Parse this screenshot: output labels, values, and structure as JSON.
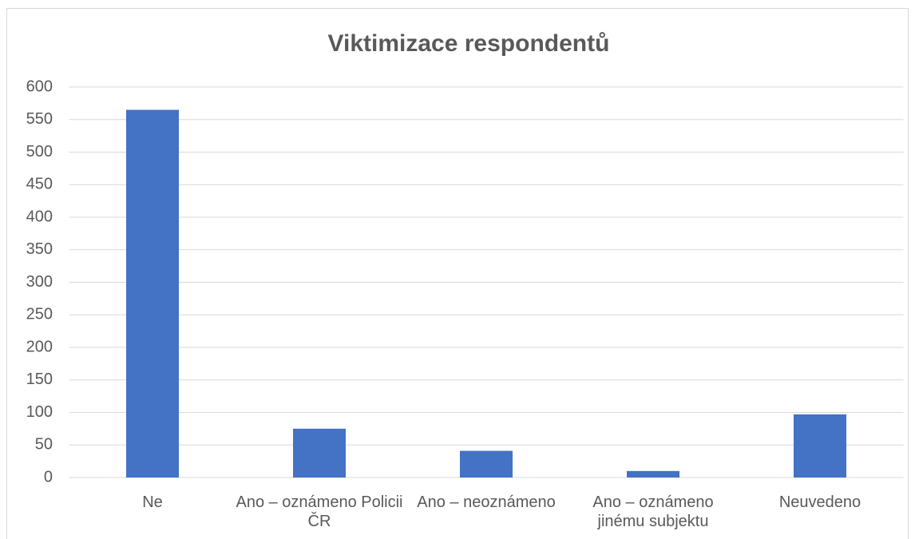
{
  "chart_data": {
    "type": "bar",
    "title": "Viktimizace respondentů",
    "categories": [
      "Ne",
      "Ano – oznámeno Policii ČR",
      "Ano – neoznámeno",
      "Ano – oznámeno jinému subjektu",
      "Neuvedeno"
    ],
    "values": [
      565,
      75,
      41,
      10,
      97
    ],
    "color": "#4472c4",
    "ylim": [
      0,
      600
    ],
    "yticks": [
      0,
      50,
      100,
      150,
      200,
      250,
      300,
      350,
      400,
      450,
      500,
      550,
      600
    ],
    "grid": true
  }
}
